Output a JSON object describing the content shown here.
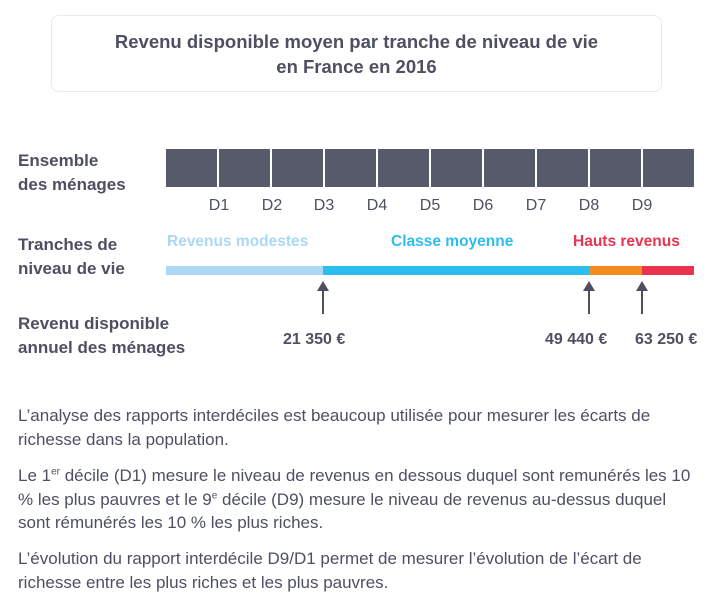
{
  "title": {
    "line1": "Revenu disponible moyen par tranche de niveau de vie",
    "line2": "en France en 2016"
  },
  "rows": {
    "ensemble_line1": "Ensemble",
    "ensemble_line2": "des ménages",
    "tranches_line1": "Tranches de",
    "tranches_line2": "niveau de vie",
    "revenu_line1": "Revenu disponible",
    "revenu_line2": "annuel des ménages"
  },
  "deciles": [
    "D1",
    "D2",
    "D3",
    "D4",
    "D5",
    "D6",
    "D7",
    "D8",
    "D9"
  ],
  "tranches": {
    "modestes": "Revenus modestes",
    "moyenne": "Classe moyenne",
    "hauts": "Hauts revenus"
  },
  "colors": {
    "modestes": "#aad8f5",
    "moyenne": "#2cbdf0",
    "hauts_orange": "#f58a1e",
    "hauts_red": "#e8344f",
    "cells": "#565a6b"
  },
  "values": {
    "d3": "21 350 €",
    "d8": "49 440 €",
    "d9": "63 250 €"
  },
  "text": {
    "p1": "L’analyse des rapports interdéciles est beaucoup utilisée pour mesurer les écarts de richesse dans la population.",
    "p2_a": "Le 1",
    "p2_sup1": "er",
    "p2_b": " décile (D1) mesure le niveau de revenus en dessous duquel sont remunérés les 10 % les plus pauvres et le 9",
    "p2_sup2": "e",
    "p2_c": " décile (D9) mesure le niveau de revenus au-dessus duquel sont rémunérés les 10 % les plus riches.",
    "p3": "L’évolution du rapport interdécile D9/D1 permet de mesurer l’évolution de l’écart de richesse entre les plus riches et les plus pauvres."
  }
}
